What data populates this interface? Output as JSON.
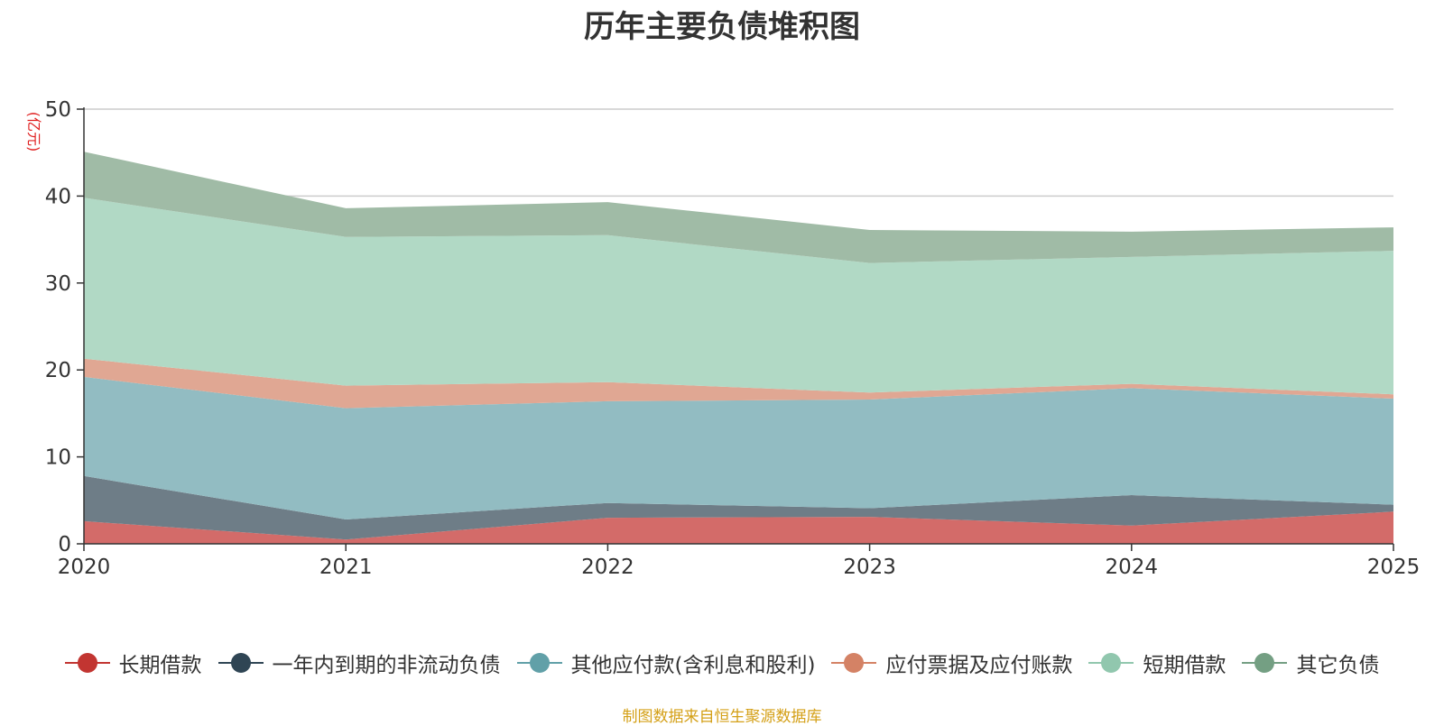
{
  "chart_data": {
    "type": "area",
    "stacked": true,
    "title": "历年主要负债堆积图",
    "ylabel": "(亿元)",
    "xlabel": "",
    "x": [
      "2020",
      "2021",
      "2022",
      "2023",
      "2024",
      "2025"
    ],
    "ylim": [
      0,
      50
    ],
    "yticks": [
      "0",
      "10",
      "20",
      "30",
      "40",
      "50"
    ],
    "grid": true,
    "legend_position": "bottom",
    "series": [
      {
        "name": "长期借款",
        "color": "#d36b69",
        "line_color": "#c23531",
        "values": [
          2.6,
          0.5,
          3.0,
          3.1,
          2.1,
          3.7
        ]
      },
      {
        "name": "一年内到期的非流动负债",
        "color": "#6e7d87",
        "line_color": "#2f4554",
        "values": [
          5.2,
          2.3,
          1.7,
          1.0,
          3.5,
          0.8
        ]
      },
      {
        "name": "其他应付款(含利息和股利)",
        "color": "#92bcc2",
        "line_color": "#61a0a8",
        "values": [
          11.4,
          12.8,
          11.7,
          12.5,
          12.3,
          12.2
        ]
      },
      {
        "name": "应付票据及应付账款",
        "color": "#e0a793",
        "line_color": "#d48265",
        "values": [
          2.1,
          2.6,
          2.2,
          0.8,
          0.5,
          0.5
        ]
      },
      {
        "name": "短期借款",
        "color": "#b1d9c5",
        "line_color": "#91c7ae",
        "values": [
          18.5,
          17.1,
          16.9,
          14.9,
          14.6,
          16.5
        ]
      },
      {
        "name": "其它负债",
        "color": "#a0bba6",
        "line_color": "#749f83",
        "values": [
          5.3,
          3.3,
          3.8,
          3.8,
          2.9,
          2.7
        ]
      }
    ]
  },
  "source_note": "制图数据来自恒生聚源数据库"
}
